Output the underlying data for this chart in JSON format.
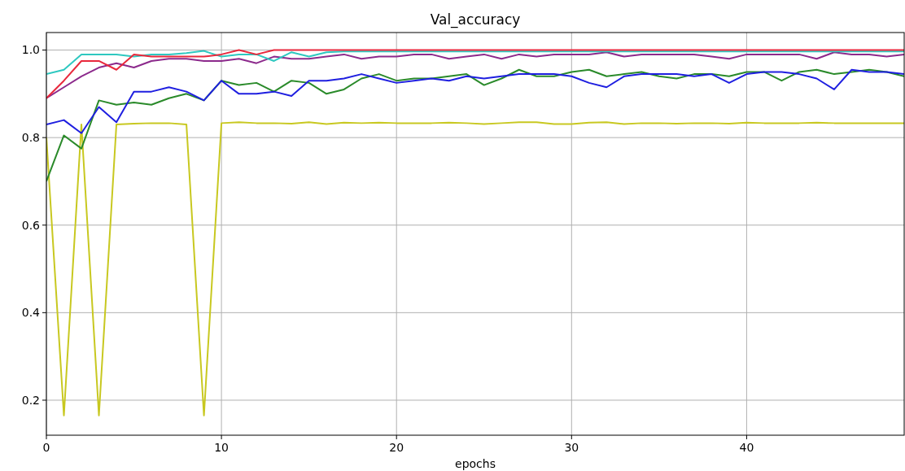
{
  "chart_data": {
    "type": "line",
    "title": "Val_accuracy",
    "xlabel": "epochs",
    "x": [
      0,
      1,
      2,
      3,
      4,
      5,
      6,
      7,
      8,
      9,
      10,
      11,
      12,
      13,
      14,
      15,
      16,
      17,
      18,
      19,
      20,
      21,
      22,
      23,
      24,
      25,
      26,
      27,
      28,
      29,
      30,
      31,
      32,
      33,
      34,
      35,
      36,
      37,
      38,
      39,
      40,
      41,
      42,
      43,
      44,
      45,
      46,
      47,
      48,
      49
    ],
    "xlim": [
      0,
      49
    ],
    "xticks": [
      0,
      10,
      20,
      30,
      40
    ],
    "ylim": [
      0.12,
      1.04
    ],
    "yticks": [
      {
        "value": 0.2,
        "label": "0.2"
      },
      {
        "value": 0.4,
        "label": "0.4"
      },
      {
        "value": 0.6,
        "label": "0.6"
      },
      {
        "value": 0.8,
        "label": "0.8"
      },
      {
        "value": 1.0,
        "label": "1.0"
      }
    ],
    "grid": true,
    "series": [
      {
        "color": "#c8c820",
        "values": [
          0.8,
          0.165,
          0.83,
          0.165,
          0.83,
          0.832,
          0.833,
          0.833,
          0.83,
          0.165,
          0.833,
          0.835,
          0.833,
          0.833,
          0.832,
          0.835,
          0.831,
          0.834,
          0.833,
          0.834,
          0.833,
          0.833,
          0.833,
          0.834,
          0.833,
          0.831,
          0.833,
          0.835,
          0.835,
          0.831,
          0.831,
          0.834,
          0.835,
          0.831,
          0.833,
          0.833,
          0.832,
          0.833,
          0.833,
          0.832,
          0.834,
          0.833,
          0.833,
          0.833,
          0.834,
          0.833,
          0.833,
          0.833,
          0.833,
          0.833
        ]
      },
      {
        "color": "#2a8a2a",
        "values": [
          0.7,
          0.805,
          0.775,
          0.885,
          0.875,
          0.88,
          0.875,
          0.89,
          0.9,
          0.885,
          0.93,
          0.92,
          0.925,
          0.905,
          0.93,
          0.925,
          0.9,
          0.91,
          0.935,
          0.945,
          0.93,
          0.935,
          0.935,
          0.94,
          0.945,
          0.92,
          0.935,
          0.955,
          0.94,
          0.94,
          0.95,
          0.955,
          0.94,
          0.945,
          0.95,
          0.94,
          0.935,
          0.945,
          0.945,
          0.94,
          0.95,
          0.95,
          0.93,
          0.95,
          0.955,
          0.945,
          0.95,
          0.955,
          0.95,
          0.94
        ]
      },
      {
        "color": "#1f1fe0",
        "values": [
          0.83,
          0.84,
          0.81,
          0.87,
          0.835,
          0.905,
          0.905,
          0.915,
          0.905,
          0.885,
          0.93,
          0.9,
          0.9,
          0.905,
          0.895,
          0.93,
          0.93,
          0.935,
          0.945,
          0.935,
          0.925,
          0.93,
          0.935,
          0.93,
          0.94,
          0.935,
          0.94,
          0.945,
          0.945,
          0.945,
          0.94,
          0.925,
          0.915,
          0.94,
          0.945,
          0.945,
          0.945,
          0.94,
          0.945,
          0.925,
          0.945,
          0.95,
          0.95,
          0.945,
          0.935,
          0.91,
          0.955,
          0.95,
          0.95,
          0.945
        ]
      },
      {
        "color": "#8c2a8c",
        "values": [
          0.89,
          0.915,
          0.94,
          0.96,
          0.97,
          0.96,
          0.975,
          0.98,
          0.98,
          0.975,
          0.975,
          0.98,
          0.97,
          0.985,
          0.98,
          0.98,
          0.985,
          0.99,
          0.98,
          0.985,
          0.985,
          0.99,
          0.99,
          0.98,
          0.985,
          0.99,
          0.98,
          0.99,
          0.985,
          0.99,
          0.99,
          0.99,
          0.995,
          0.985,
          0.99,
          0.99,
          0.99,
          0.99,
          0.985,
          0.98,
          0.99,
          0.99,
          0.99,
          0.99,
          0.98,
          0.995,
          0.99,
          0.99,
          0.985,
          0.99
        ]
      },
      {
        "color": "#2ec8c0",
        "values": [
          0.945,
          0.955,
          0.99,
          0.99,
          0.99,
          0.985,
          0.99,
          0.99,
          0.993,
          0.998,
          0.985,
          0.99,
          0.99,
          0.975,
          0.995,
          0.985,
          0.995,
          0.997,
          0.997,
          0.997,
          0.997,
          0.997,
          0.997,
          0.997,
          0.997,
          0.997,
          0.997,
          0.997,
          0.997,
          0.997,
          0.997,
          0.997,
          0.997,
          0.997,
          0.997,
          0.997,
          0.997,
          0.997,
          0.997,
          0.997,
          0.997,
          0.997,
          0.997,
          0.997,
          0.997,
          0.997,
          0.997,
          0.997,
          0.997,
          0.997
        ]
      },
      {
        "color": "#e8283c",
        "values": [
          0.89,
          0.93,
          0.975,
          0.975,
          0.955,
          0.99,
          0.985,
          0.985,
          0.985,
          0.985,
          0.99,
          1.0,
          0.99,
          1.0,
          1.0,
          1.0,
          1.0,
          1.0,
          1.0,
          1.0,
          1.0,
          1.0,
          1.0,
          1.0,
          1.0,
          1.0,
          1.0,
          1.0,
          1.0,
          1.0,
          1.0,
          1.0,
          1.0,
          1.0,
          1.0,
          1.0,
          1.0,
          1.0,
          1.0,
          1.0,
          1.0,
          1.0,
          1.0,
          1.0,
          1.0,
          1.0,
          1.0,
          1.0,
          1.0,
          1.0
        ]
      }
    ]
  }
}
